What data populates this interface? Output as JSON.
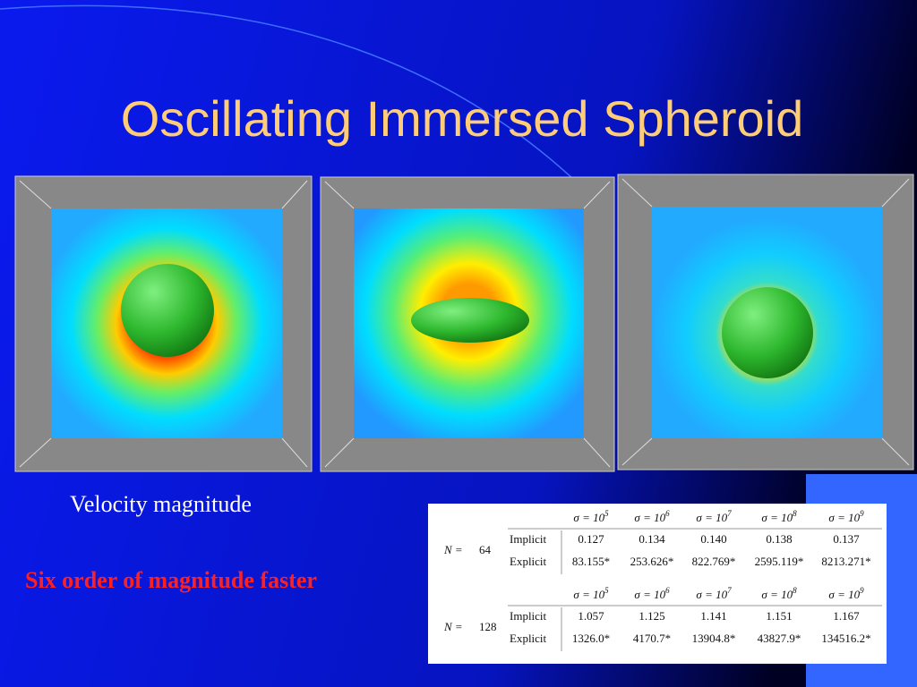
{
  "title": "Oscillating Immersed Spheroid",
  "caption": "Velocity magnitude",
  "highlight": "Six order of magnitude faster",
  "table": {
    "blocks": [
      {
        "n_label": "N =",
        "n": "64",
        "headers": [
          {
            "base": "σ = 10",
            "exp": "5"
          },
          {
            "base": "σ = 10",
            "exp": "6"
          },
          {
            "base": "σ = 10",
            "exp": "7"
          },
          {
            "base": "σ = 10",
            "exp": "8"
          },
          {
            "base": "σ = 10",
            "exp": "9"
          }
        ],
        "rows": [
          {
            "method": "Implicit",
            "cells": [
              "0.127",
              "0.134",
              "0.140",
              "0.138",
              "0.137"
            ]
          },
          {
            "method": "Explicit",
            "cells": [
              "83.155*",
              "253.626*",
              "822.769*",
              "2595.119*",
              "8213.271*"
            ]
          }
        ]
      },
      {
        "n_label": "N =",
        "n": "128",
        "headers": [
          {
            "base": "σ = 10",
            "exp": "5"
          },
          {
            "base": "σ = 10",
            "exp": "6"
          },
          {
            "base": "σ = 10",
            "exp": "7"
          },
          {
            "base": "σ = 10",
            "exp": "8"
          },
          {
            "base": "σ = 10",
            "exp": "9"
          }
        ],
        "rows": [
          {
            "method": "Implicit",
            "cells": [
              "1.057",
              "1.125",
              "1.141",
              "1.151",
              "1.167"
            ]
          },
          {
            "method": "Explicit",
            "cells": [
              "1326.0*",
              "4170.7*",
              "13904.8*",
              "43827.9*",
              "134516.2*"
            ]
          }
        ]
      }
    ]
  }
}
